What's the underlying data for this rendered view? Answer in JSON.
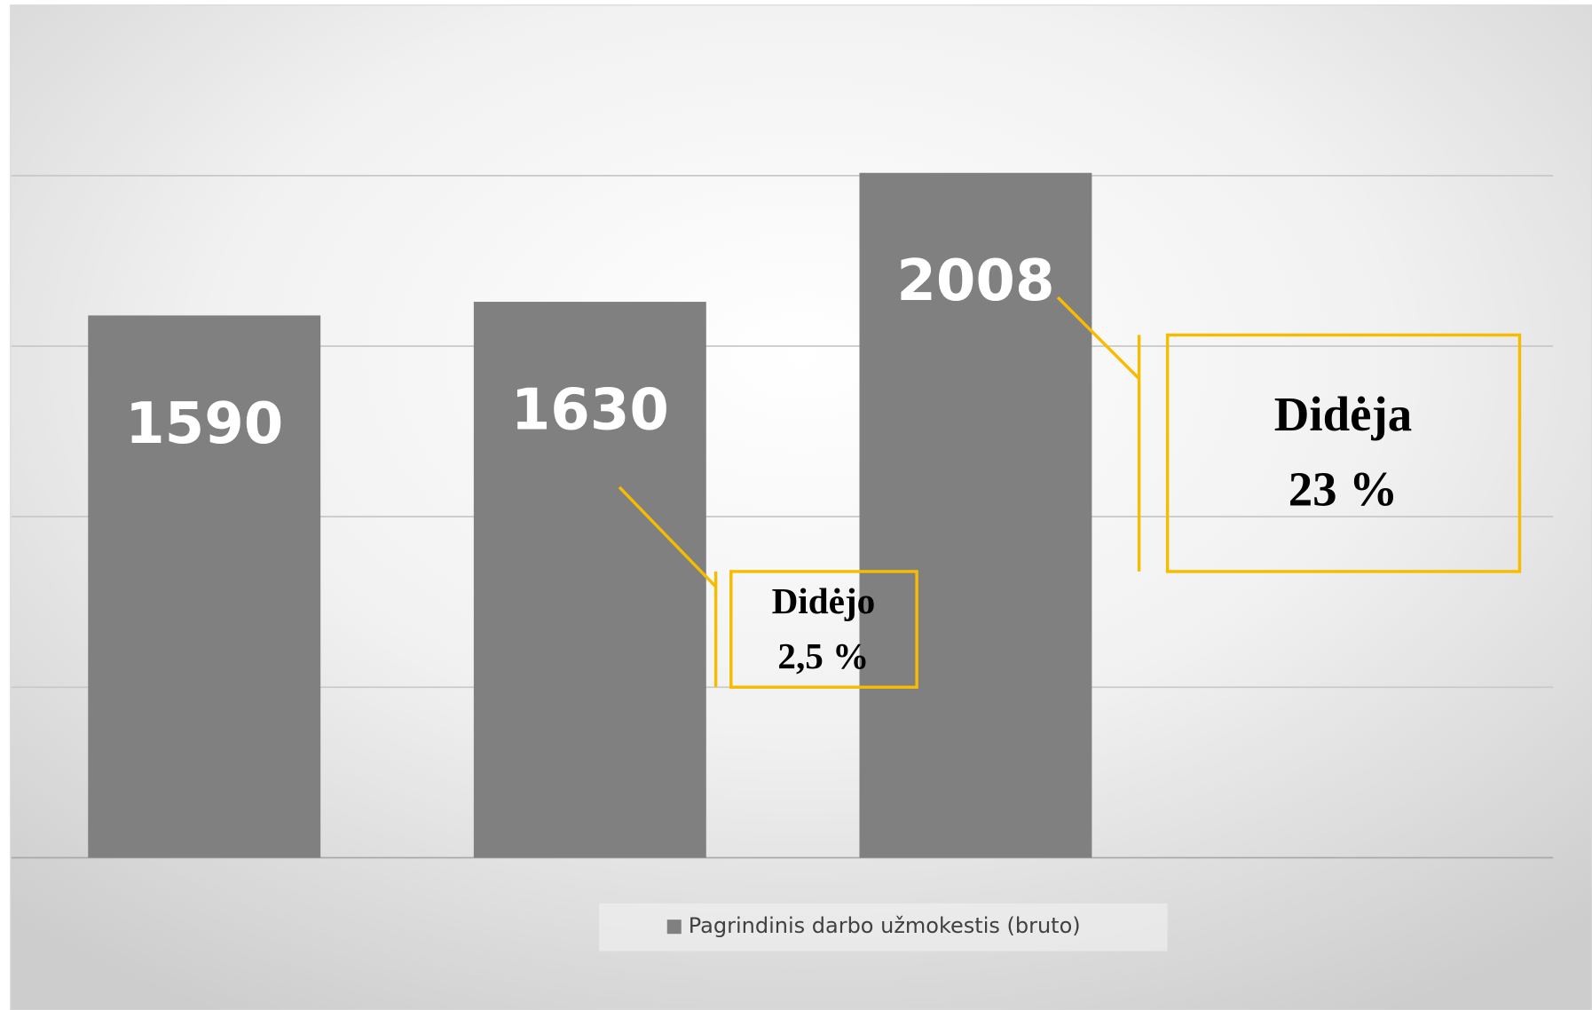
{
  "chart_data": {
    "type": "bar",
    "categories": [
      null,
      null,
      null
    ],
    "series": [
      {
        "name": "Pagrindinis darbo užmokestis (bruto)",
        "color": "#808080",
        "values": [
          1590,
          1630,
          2008
        ]
      }
    ],
    "ylim": [
      0,
      2000
    ],
    "yticks": [
      0,
      500,
      1000,
      1500,
      2000
    ],
    "grid": true,
    "legend": "bottom",
    "annotations": [
      {
        "lines": [
          "Didėjo",
          "2,5 %"
        ],
        "color": "#f5bc00"
      },
      {
        "lines": [
          "Didėja",
          "23 %"
        ],
        "color": "#f5bc00"
      }
    ]
  }
}
